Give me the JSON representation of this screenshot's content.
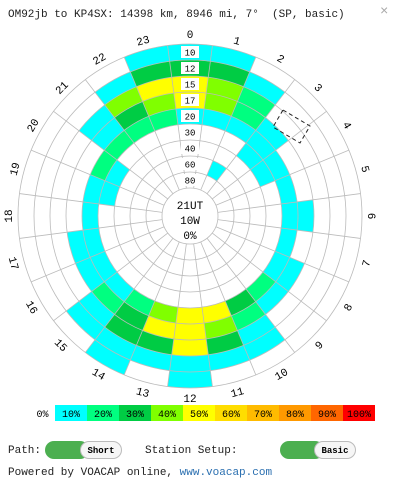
{
  "header": {
    "title": "OM92jb to KP4SX: 14398 km, 8946 mi, 7°  (SP, basic)",
    "close": "×"
  },
  "center": {
    "time": "21UT",
    "power": "10W",
    "reliability": "0%"
  },
  "hours": [
    "0",
    "1",
    "2",
    "3",
    "4",
    "5",
    "6",
    "7",
    "8",
    "9",
    "10",
    "11",
    "12",
    "13",
    "14",
    "15",
    "16",
    "17",
    "18",
    "19",
    "20",
    "21",
    "22",
    "23"
  ],
  "grid": {
    "rows": [
      {
        "freq": "10",
        "values": [
          10,
          10,
          0,
          0,
          0,
          0,
          0,
          0,
          0,
          0,
          0,
          0,
          10,
          0,
          10,
          0,
          0,
          0,
          0,
          0,
          0,
          0,
          0,
          10
        ]
      },
      {
        "freq": "12",
        "values": [
          30,
          30,
          10,
          0,
          0,
          0,
          0,
          0,
          0,
          0,
          10,
          10,
          10,
          10,
          10,
          10,
          0,
          0,
          0,
          0,
          0,
          0,
          10,
          30
        ]
      },
      {
        "freq": "15",
        "values": [
          50,
          40,
          20,
          0,
          0,
          0,
          0,
          0,
          0,
          0,
          10,
          30,
          50,
          30,
          30,
          10,
          0,
          0,
          0,
          0,
          0,
          10,
          40,
          50
        ]
      },
      {
        "freq": "17",
        "values": [
          50,
          40,
          20,
          10,
          0,
          0,
          10,
          0,
          10,
          10,
          20,
          40,
          50,
          50,
          30,
          20,
          10,
          10,
          0,
          0,
          0,
          10,
          30,
          40
        ]
      },
      {
        "freq": "20",
        "values": [
          10,
          10,
          10,
          10,
          10,
          10,
          10,
          10,
          10,
          20,
          30,
          50,
          50,
          40,
          20,
          10,
          10,
          10,
          10,
          10,
          20,
          20,
          20,
          20
        ]
      },
      {
        "freq": "30",
        "values": [
          0,
          0,
          0,
          10,
          10,
          0,
          0,
          0,
          0,
          0,
          0,
          0,
          0,
          0,
          0,
          0,
          0,
          0,
          0,
          10,
          10,
          0,
          0,
          0
        ]
      },
      {
        "freq": "40",
        "values": [
          0,
          0,
          0,
          0,
          0,
          0,
          0,
          0,
          0,
          0,
          0,
          0,
          0,
          0,
          0,
          0,
          0,
          0,
          0,
          0,
          0,
          0,
          0,
          0
        ]
      },
      {
        "freq": "60",
        "values": [
          0,
          0,
          10,
          0,
          0,
          0,
          0,
          0,
          0,
          0,
          0,
          0,
          0,
          0,
          0,
          0,
          0,
          0,
          0,
          0,
          0,
          0,
          0,
          0
        ]
      },
      {
        "freq": "80",
        "values": [
          0,
          0,
          0,
          0,
          0,
          0,
          0,
          0,
          0,
          0,
          0,
          0,
          0,
          0,
          0,
          0,
          0,
          0,
          0,
          0,
          0,
          0,
          0,
          0
        ]
      }
    ]
  },
  "legend": [
    {
      "value": 0,
      "label": "0%",
      "color": "#ffffff"
    },
    {
      "value": 10,
      "label": "10%",
      "color": "#00ffff"
    },
    {
      "value": 20,
      "label": "20%",
      "color": "#00ff80"
    },
    {
      "value": 30,
      "label": "30%",
      "color": "#00cc44"
    },
    {
      "value": 40,
      "label": "40%",
      "color": "#80ff00"
    },
    {
      "value": 50,
      "label": "50%",
      "color": "#ffff00"
    },
    {
      "value": 60,
      "label": "60%",
      "color": "#ffdd00"
    },
    {
      "value": 70,
      "label": "70%",
      "color": "#ffbb00"
    },
    {
      "value": 80,
      "label": "80%",
      "color": "#ff9900"
    },
    {
      "value": 90,
      "label": "90%",
      "color": "#ff6600"
    },
    {
      "value": 100,
      "label": "100%",
      "color": "#ff0000"
    }
  ],
  "controls": {
    "path_label": "Path:",
    "path_value": "Short",
    "setup_label": "Station Setup:",
    "setup_value": "Basic"
  },
  "footer": {
    "text": "Powered by VOACAP online, ",
    "link": "www.voacap.com"
  }
}
